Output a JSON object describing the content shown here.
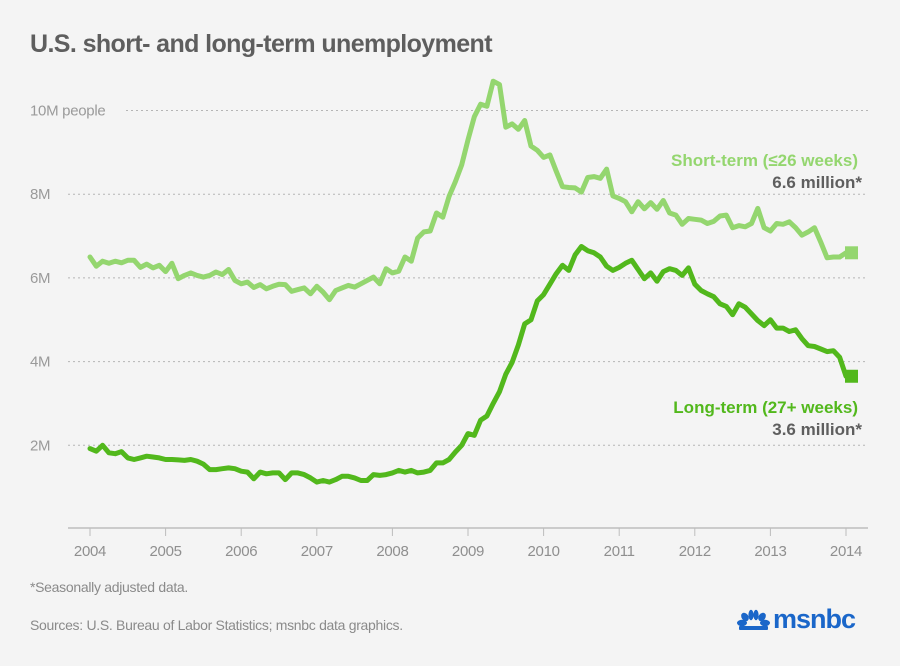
{
  "title": "U.S. short- and long-term unemployment",
  "footnote": "*Seasonally adjusted data.",
  "sources": "Sources: U.S. Bureau of Labor Statistics; msnbc data graphics.",
  "logo": {
    "text": "msnbc",
    "icon": "peacock-icon",
    "color": "#1a66c9"
  },
  "chart_data": {
    "type": "line",
    "title": "U.S. short- and long-term unemployment",
    "xlabel": "",
    "ylabel": "people",
    "x_start": "2004-01",
    "x_step": "month",
    "xlim": [
      2004,
      2014.2
    ],
    "ylim": [
      0,
      10.5
    ],
    "y_unit": "millions",
    "grid": true,
    "y_ticks": [
      {
        "value": 2,
        "label": "2M"
      },
      {
        "value": 4,
        "label": "4M"
      },
      {
        "value": 6,
        "label": "6M"
      },
      {
        "value": 8,
        "label": "8M"
      },
      {
        "value": 10,
        "label": "10M people"
      }
    ],
    "x_ticks": [
      "2004",
      "2005",
      "2006",
      "2007",
      "2008",
      "2009",
      "2010",
      "2011",
      "2012",
      "2013",
      "2014"
    ],
    "series": [
      {
        "name": "Short-term (≤26 weeks)",
        "label": "Short-term (≤26 weeks)",
        "end_label": "6.6 million*",
        "end_value": 6.6,
        "color": "#94d66f",
        "values": [
          6.5,
          6.28,
          6.4,
          6.35,
          6.4,
          6.36,
          6.42,
          6.42,
          6.25,
          6.33,
          6.24,
          6.3,
          6.15,
          6.35,
          5.98,
          6.06,
          6.12,
          6.06,
          6.02,
          6.06,
          6.14,
          6.08,
          6.2,
          5.94,
          5.86,
          5.9,
          5.77,
          5.84,
          5.74,
          5.8,
          5.85,
          5.84,
          5.68,
          5.72,
          5.76,
          5.62,
          5.8,
          5.66,
          5.48,
          5.7,
          5.76,
          5.82,
          5.78,
          5.86,
          5.94,
          6.02,
          5.86,
          6.22,
          6.12,
          6.16,
          6.5,
          6.4,
          6.95,
          7.1,
          7.12,
          7.55,
          7.45,
          7.95,
          8.3,
          8.7,
          9.3,
          9.85,
          10.15,
          10.1,
          10.7,
          10.62,
          9.6,
          9.68,
          9.55,
          9.76,
          9.15,
          9.05,
          8.88,
          8.94,
          8.55,
          8.18,
          8.16,
          8.15,
          8.05,
          8.4,
          8.42,
          8.38,
          8.6,
          7.96,
          7.9,
          7.82,
          7.58,
          7.82,
          7.65,
          7.8,
          7.64,
          7.85,
          7.55,
          7.5,
          7.28,
          7.42,
          7.4,
          7.38,
          7.3,
          7.35,
          7.48,
          7.5,
          7.2,
          7.25,
          7.22,
          7.3,
          7.66,
          7.2,
          7.12,
          7.3,
          7.28,
          7.34,
          7.2,
          7.02,
          7.1,
          7.2,
          6.85,
          6.48,
          6.5,
          6.5,
          6.6
        ]
      },
      {
        "name": "Long-term (27+ weeks)",
        "label": "Long-term (27+ weeks)",
        "end_label": "3.6 million*",
        "end_value": 3.6,
        "color": "#52b81c",
        "values": [
          1.92,
          1.86,
          2.0,
          1.82,
          1.8,
          1.85,
          1.7,
          1.66,
          1.7,
          1.74,
          1.72,
          1.7,
          1.66,
          1.66,
          1.65,
          1.64,
          1.66,
          1.62,
          1.55,
          1.42,
          1.42,
          1.44,
          1.46,
          1.44,
          1.38,
          1.36,
          1.2,
          1.36,
          1.32,
          1.34,
          1.34,
          1.18,
          1.34,
          1.34,
          1.3,
          1.22,
          1.12,
          1.16,
          1.12,
          1.18,
          1.26,
          1.26,
          1.22,
          1.16,
          1.16,
          1.3,
          1.28,
          1.3,
          1.34,
          1.4,
          1.36,
          1.4,
          1.34,
          1.36,
          1.4,
          1.58,
          1.58,
          1.66,
          1.84,
          2.0,
          2.28,
          2.24,
          2.6,
          2.7,
          3.0,
          3.28,
          3.7,
          3.98,
          4.4,
          4.9,
          5.0,
          5.45,
          5.6,
          5.85,
          6.1,
          6.3,
          6.18,
          6.55,
          6.75,
          6.65,
          6.6,
          6.5,
          6.28,
          6.18,
          6.25,
          6.35,
          6.42,
          6.2,
          5.98,
          6.12,
          5.92,
          6.15,
          6.22,
          6.18,
          6.06,
          6.24,
          5.85,
          5.7,
          5.62,
          5.55,
          5.38,
          5.32,
          5.12,
          5.38,
          5.3,
          5.14,
          4.98,
          4.86,
          5.0,
          4.8,
          4.8,
          4.72,
          4.76,
          4.55,
          4.38,
          4.36,
          4.3,
          4.24,
          4.26,
          4.1,
          3.65
        ]
      }
    ]
  }
}
